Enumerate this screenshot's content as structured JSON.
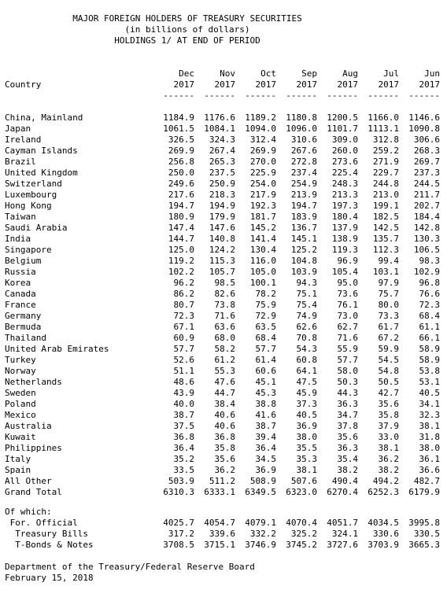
{
  "title": "MAJOR FOREIGN HOLDERS OF TREASURY SECURITIES",
  "subtitle": "(in billions of dollars)",
  "subtitle2": "HOLDINGS 1/ AT END OF PERIOD",
  "column_header_label": "Country",
  "columns": [
    {
      "month": "Dec",
      "year": "2017"
    },
    {
      "month": "Nov",
      "year": "2017"
    },
    {
      "month": "Oct",
      "year": "2017"
    },
    {
      "month": "Sep",
      "year": "2017"
    },
    {
      "month": "Aug",
      "year": "2017"
    },
    {
      "month": "Jul",
      "year": "2017"
    },
    {
      "month": "Jun",
      "year": "2017"
    }
  ],
  "dash_line": "------",
  "rows": [
    {
      "country": "China, Mainland",
      "values": [
        "1184.9",
        "1176.6",
        "1189.2",
        "1180.8",
        "1200.5",
        "1166.0",
        "1146.6"
      ]
    },
    {
      "country": "Japan",
      "values": [
        "1061.5",
        "1084.1",
        "1094.0",
        "1096.0",
        "1101.7",
        "1113.1",
        "1090.8"
      ]
    },
    {
      "country": "Ireland",
      "values": [
        "326.5",
        "324.3",
        "312.4",
        "310.6",
        "309.0",
        "312.8",
        "306.6"
      ]
    },
    {
      "country": "Cayman Islands",
      "values": [
        "269.9",
        "267.4",
        "269.9",
        "267.6",
        "260.0",
        "259.2",
        "268.3"
      ]
    },
    {
      "country": "Brazil",
      "values": [
        "256.8",
        "265.3",
        "270.0",
        "272.8",
        "273.6",
        "271.9",
        "269.7"
      ]
    },
    {
      "country": "United Kingdom",
      "values": [
        "250.0",
        "237.5",
        "225.9",
        "237.4",
        "225.4",
        "229.7",
        "237.3"
      ]
    },
    {
      "country": "Switzerland",
      "values": [
        "249.6",
        "250.9",
        "254.0",
        "254.9",
        "248.3",
        "244.8",
        "244.5"
      ]
    },
    {
      "country": "Luxembourg",
      "values": [
        "217.6",
        "218.3",
        "217.9",
        "213.9",
        "213.3",
        "213.0",
        "211.7"
      ]
    },
    {
      "country": "Hong Kong",
      "values": [
        "194.7",
        "194.9",
        "192.3",
        "194.7",
        "197.3",
        "199.1",
        "202.7"
      ]
    },
    {
      "country": "Taiwan",
      "values": [
        "180.9",
        "179.9",
        "181.7",
        "183.9",
        "180.4",
        "182.5",
        "184.4"
      ]
    },
    {
      "country": "Saudi Arabia",
      "values": [
        "147.4",
        "147.6",
        "145.2",
        "136.7",
        "137.9",
        "142.5",
        "142.8"
      ]
    },
    {
      "country": "India",
      "values": [
        "144.7",
        "140.8",
        "141.4",
        "145.1",
        "138.9",
        "135.7",
        "130.3"
      ]
    },
    {
      "country": "Singapore",
      "values": [
        "125.0",
        "124.2",
        "130.4",
        "125.2",
        "119.3",
        "112.3",
        "106.5"
      ]
    },
    {
      "country": "Belgium",
      "values": [
        "119.2",
        "115.3",
        "116.0",
        "104.8",
        "96.9",
        "99.4",
        "98.3"
      ]
    },
    {
      "country": "Russia",
      "values": [
        "102.2",
        "105.7",
        "105.0",
        "103.9",
        "105.4",
        "103.1",
        "102.9"
      ]
    },
    {
      "country": "Korea",
      "values": [
        "96.2",
        "98.5",
        "100.1",
        "94.3",
        "95.0",
        "97.9",
        "96.8"
      ]
    },
    {
      "country": "Canada",
      "values": [
        "86.2",
        "82.6",
        "78.2",
        "75.1",
        "73.6",
        "75.7",
        "76.6"
      ]
    },
    {
      "country": "France",
      "values": [
        "80.7",
        "73.8",
        "75.9",
        "75.4",
        "76.1",
        "80.0",
        "72.3"
      ]
    },
    {
      "country": "Germany",
      "values": [
        "72.3",
        "71.6",
        "72.9",
        "74.9",
        "73.0",
        "73.3",
        "68.4"
      ]
    },
    {
      "country": "Bermuda",
      "values": [
        "67.1",
        "63.6",
        "63.5",
        "62.6",
        "62.7",
        "61.7",
        "61.1"
      ]
    },
    {
      "country": "Thailand",
      "values": [
        "60.9",
        "68.0",
        "68.4",
        "70.8",
        "71.6",
        "67.2",
        "66.1"
      ]
    },
    {
      "country": "United Arab Emirates",
      "values": [
        "57.7",
        "58.2",
        "57.7",
        "54.3",
        "55.9",
        "59.9",
        "58.9"
      ]
    },
    {
      "country": "Turkey",
      "values": [
        "52.6",
        "61.2",
        "61.4",
        "60.8",
        "57.7",
        "54.5",
        "58.9"
      ]
    },
    {
      "country": "Norway",
      "values": [
        "51.1",
        "55.3",
        "60.6",
        "64.1",
        "58.0",
        "54.8",
        "53.8"
      ]
    },
    {
      "country": "Netherlands",
      "values": [
        "48.6",
        "47.6",
        "45.1",
        "47.5",
        "50.3",
        "50.5",
        "53.1"
      ]
    },
    {
      "country": "Sweden",
      "values": [
        "43.9",
        "44.7",
        "45.3",
        "45.9",
        "44.3",
        "42.7",
        "40.5"
      ]
    },
    {
      "country": "Poland",
      "values": [
        "40.0",
        "38.4",
        "38.8",
        "37.3",
        "36.3",
        "35.6",
        "34.1"
      ]
    },
    {
      "country": "Mexico",
      "values": [
        "38.7",
        "40.6",
        "41.6",
        "40.5",
        "34.7",
        "35.8",
        "32.3"
      ]
    },
    {
      "country": "Australia",
      "values": [
        "37.5",
        "40.6",
        "38.7",
        "36.9",
        "37.8",
        "37.9",
        "38.1"
      ]
    },
    {
      "country": "Kuwait",
      "values": [
        "36.8",
        "36.8",
        "39.4",
        "38.0",
        "35.6",
        "33.0",
        "31.8"
      ]
    },
    {
      "country": "Philippines",
      "values": [
        "36.4",
        "35.8",
        "36.4",
        "35.5",
        "36.3",
        "38.1",
        "38.0"
      ]
    },
    {
      "country": "Italy",
      "values": [
        "35.2",
        "35.6",
        "34.5",
        "35.3",
        "35.4",
        "36.2",
        "36.1"
      ]
    },
    {
      "country": "Spain",
      "values": [
        "33.5",
        "36.2",
        "36.9",
        "38.1",
        "38.2",
        "38.2",
        "36.6"
      ]
    },
    {
      "country": "All Other",
      "values": [
        "503.9",
        "511.2",
        "508.9",
        "507.6",
        "490.4",
        "494.2",
        "482.7"
      ]
    },
    {
      "country": "Grand Total",
      "values": [
        "6310.3",
        "6333.1",
        "6349.5",
        "6323.0",
        "6270.4",
        "6252.3",
        "6179.9"
      ]
    }
  ],
  "of_which_label": "Of which:",
  "of_which_rows": [
    {
      "country": " For. Official",
      "values": [
        "4025.7",
        "4054.7",
        "4079.1",
        "4070.4",
        "4051.7",
        "4034.5",
        "3995.8"
      ]
    },
    {
      "country": "  Treasury Bills",
      "values": [
        "317.2",
        "339.6",
        "332.2",
        "325.2",
        "324.1",
        "330.6",
        "330.5"
      ]
    },
    {
      "country": "  T-Bonds & Notes",
      "values": [
        "3708.5",
        "3715.1",
        "3746.9",
        "3745.2",
        "3727.6",
        "3703.9",
        "3665.3"
      ]
    }
  ],
  "footer_source": "Department of the Treasury/Federal Reserve Board",
  "footer_date": "February 15, 2018"
}
